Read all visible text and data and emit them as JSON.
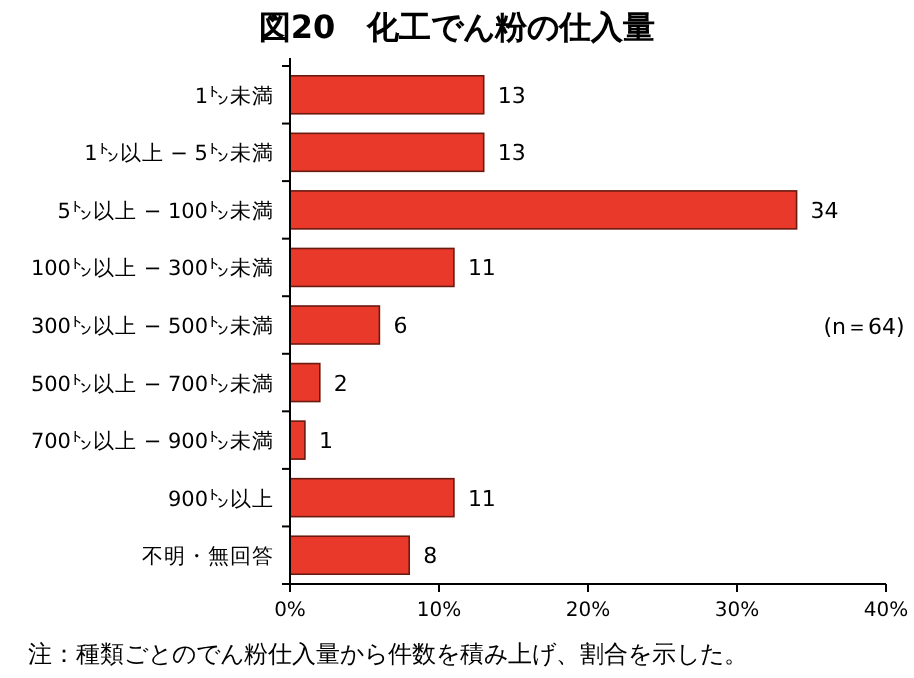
{
  "chart_data": {
    "type": "bar",
    "orientation": "horizontal",
    "title": "図20　化工でん粉の仕入量",
    "categories": [
      "1㌧未満",
      "1㌧以上 − 5㌧未満",
      "5㌧以上 − 100㌧未満",
      "100㌧以上 − 300㌧未満",
      "300㌧以上 − 500㌧未満",
      "500㌧以上 − 700㌧未満",
      "700㌧以上 − 900㌧未満",
      "900㌧以上",
      "不明・無回答"
    ],
    "values": [
      13,
      13,
      34,
      11,
      6,
      2,
      1,
      11,
      8
    ],
    "color": "#e8392a",
    "data_labels": true,
    "xlim": [
      0,
      40
    ],
    "xticks": [
      {
        "value": 0,
        "label": "0%"
      },
      {
        "value": 10,
        "label": "10%"
      },
      {
        "value": 20,
        "label": "20%"
      },
      {
        "value": 30,
        "label": "30%"
      },
      {
        "value": 40,
        "label": "40%"
      }
    ],
    "grid": false,
    "annotations": [
      "(n＝64)",
      "注：種類ごとのでん粉仕入量から件数を積み上げ、割合を示した。"
    ]
  }
}
